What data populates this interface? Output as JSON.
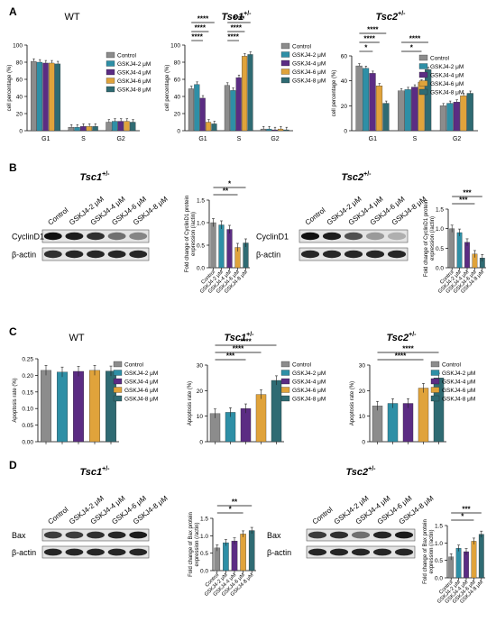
{
  "colors": [
    "#8c8c8c",
    "#2e8fa6",
    "#5b2c83",
    "#e0a33b",
    "#2f6b73"
  ],
  "series_names": [
    "Control",
    "GSKJ4-2 μM",
    "GSKJ4-4 μM",
    "GSKJ4-6 μM",
    "GSKJ4-8 μM"
  ],
  "panels": {
    "A": {
      "letter": "A"
    },
    "B": {
      "letter": "B"
    },
    "C": {
      "letter": "C"
    },
    "D": {
      "letter": "D"
    }
  },
  "blots": {
    "B_tsc1": {
      "title": "Tsc1",
      "sup": "+/-",
      "lanes": [
        "Control",
        "GSKJ4-2 μM",
        "GSKJ4-4 μM",
        "GSKJ4-6 μM",
        "GSKJ4-8 μM"
      ],
      "rows": [
        "CyclinD1",
        "β-actin"
      ]
    },
    "B_tsc2": {
      "title": "Tsc2",
      "sup": "+/-",
      "lanes": [
        "Control",
        "GSKJ4-2 μM",
        "GSKJ4-4 μM",
        "GSKJ4-6 μM",
        "GSKJ4-8 μM"
      ],
      "rows": [
        "CyclinD1",
        "β-actin"
      ]
    },
    "D_tsc1": {
      "title": "Tsc1",
      "sup": "+/-",
      "lanes": [
        "Control",
        "GSKJ4-2 μM",
        "GSKJ4-4 μM",
        "GSKJ4-6 μM",
        "GSKJ4-8 μM"
      ],
      "rows": [
        "Bax",
        "β-actin"
      ]
    },
    "D_tsc2": {
      "title": "Tsc2",
      "sup": "+/-",
      "lanes": [
        "Control",
        "GSKJ4-2 μM",
        "GSKJ4-4 μM",
        "GSKJ4-6 μM",
        "GSKJ4-8 μM"
      ],
      "rows": [
        "Bax",
        "β-actin"
      ]
    }
  },
  "chart_data": [
    {
      "id": "A_WT",
      "type": "bar",
      "title": "WT",
      "sup": "",
      "ylabel": "cell percentage (%)",
      "ylim": [
        0,
        100
      ],
      "yticks": [
        0,
        20,
        40,
        60,
        80,
        100
      ],
      "categories": [
        "G1",
        "S",
        "G2"
      ],
      "series": [
        {
          "name": "Control",
          "values": [
            81,
            4,
            10
          ]
        },
        {
          "name": "GSKJ4-2 μM",
          "values": [
            80,
            4,
            11
          ]
        },
        {
          "name": "GSKJ4-4 μM",
          "values": [
            79,
            5,
            11
          ]
        },
        {
          "name": "GSKJ4-6 μM",
          "values": [
            79,
            5,
            11
          ]
        },
        {
          "name": "GSKJ4-8 μM",
          "values": [
            78,
            5,
            10
          ]
        }
      ],
      "significance": []
    },
    {
      "id": "A_TSC1",
      "type": "bar",
      "title": "Tsc1",
      "sup": "+/-",
      "ylabel": "cell percentage (%)",
      "ylim": [
        0,
        100
      ],
      "yticks": [
        0,
        20,
        40,
        60,
        80,
        100
      ],
      "categories": [
        "G1",
        "S",
        "G2"
      ],
      "series": [
        {
          "name": "Control",
          "values": [
            49,
            53,
            2
          ]
        },
        {
          "name": "GSKJ4-2 μM",
          "values": [
            54,
            47,
            2
          ]
        },
        {
          "name": "GSKJ4-4 μM",
          "values": [
            38,
            62,
            1
          ]
        },
        {
          "name": "GSKJ4-6 μM",
          "values": [
            10,
            87,
            2
          ]
        },
        {
          "name": "GSKJ4-8 μM",
          "values": [
            8,
            89,
            1
          ]
        }
      ],
      "significance": [
        {
          "text": "****",
          "cat": 0,
          "from": 0,
          "to": 4,
          "level": 3
        },
        {
          "text": "****",
          "cat": 0,
          "from": 0,
          "to": 3,
          "level": 2
        },
        {
          "text": "****",
          "cat": 0,
          "from": 0,
          "to": 2,
          "level": 1
        },
        {
          "text": "****",
          "cat": 1,
          "from": 0,
          "to": 4,
          "level": 3
        },
        {
          "text": "****",
          "cat": 1,
          "from": 0,
          "to": 3,
          "level": 2
        },
        {
          "text": "****",
          "cat": 1,
          "from": 0,
          "to": 2,
          "level": 1
        }
      ]
    },
    {
      "id": "A_TSC2",
      "type": "bar",
      "title": "Tsc2",
      "sup": "+/-",
      "ylabel": "cell percentage (%)",
      "ylim": [
        0,
        60
      ],
      "yticks": [
        0,
        20,
        40,
        60
      ],
      "categories": [
        "G1",
        "S",
        "G2"
      ],
      "series": [
        {
          "name": "Control",
          "values": [
            52,
            32,
            20
          ]
        },
        {
          "name": "GSKJ4-2 μM",
          "values": [
            50,
            33,
            22
          ]
        },
        {
          "name": "GSKJ4-4 μM",
          "values": [
            46,
            35,
            23
          ]
        },
        {
          "name": "GSKJ4-6 μM",
          "values": [
            36,
            39,
            28
          ]
        },
        {
          "name": "GSKJ4-8 μM",
          "values": [
            22,
            49,
            30
          ]
        }
      ],
      "significance": [
        {
          "text": "****",
          "cat": 0,
          "from": 0,
          "to": 4,
          "level": 3
        },
        {
          "text": "****",
          "cat": 0,
          "from": 0,
          "to": 3,
          "level": 2
        },
        {
          "text": "*",
          "cat": 0,
          "from": 0,
          "to": 2,
          "level": 1
        },
        {
          "text": "****",
          "cat": 1,
          "from": 0,
          "to": 4,
          "level": 2
        },
        {
          "text": "*",
          "cat": 1,
          "from": 0,
          "to": 3,
          "level": 1
        }
      ]
    },
    {
      "id": "B_TSC1",
      "type": "bar",
      "title": "",
      "sup": "",
      "ylabel": "Fold change of CyclinD1 protein expression (/actin)",
      "ylim": [
        0,
        1.5
      ],
      "yticks": [
        0,
        0.5,
        1.0,
        1.5
      ],
      "categories": [
        "Control",
        "GSKJ4-2 μM",
        "GSKJ4-4 μM",
        "GSKJ4-6 μM",
        "GSKJ4-8 μM"
      ],
      "values": [
        1.0,
        0.95,
        0.85,
        0.45,
        0.55
      ],
      "significance": [
        {
          "text": "*",
          "from": 0,
          "to": 4,
          "level": 2
        },
        {
          "text": "**",
          "from": 0,
          "to": 3,
          "level": 1
        }
      ]
    },
    {
      "id": "B_TSC2",
      "type": "bar",
      "title": "",
      "sup": "",
      "ylabel": "Fold change of CyclinD1 protein expression (/actin)",
      "ylim": [
        0,
        1.5
      ],
      "yticks": [
        0,
        0.5,
        1.0,
        1.5
      ],
      "categories": [
        "Control",
        "GSKJ4-2 μM",
        "GSKJ4-4 μM",
        "GSKJ4-6 μM",
        "GSKJ4-8 μM"
      ],
      "values": [
        1.0,
        0.9,
        0.65,
        0.35,
        0.25
      ],
      "significance": [
        {
          "text": "***",
          "from": 0,
          "to": 4,
          "level": 2
        },
        {
          "text": "***",
          "from": 0,
          "to": 3,
          "level": 1
        }
      ]
    },
    {
      "id": "C_WT",
      "type": "bar",
      "title": "WT",
      "sup": "",
      "ylabel": "Apoptosis rate (%)",
      "ylim": [
        0,
        0.25
      ],
      "yticks": [
        0,
        0.05,
        0.1,
        0.15,
        0.2,
        0.25
      ],
      "categories": [
        "",
        "",
        "",
        "",
        ""
      ],
      "values": [
        0.215,
        0.21,
        0.212,
        0.215,
        0.213
      ],
      "significance": []
    },
    {
      "id": "C_TSC1",
      "type": "bar",
      "title": "Tsc1",
      "sup": "+/-",
      "ylabel": "Apoptosis rate (%)",
      "ylim": [
        0,
        30
      ],
      "yticks": [
        0,
        10,
        20,
        30
      ],
      "categories": [
        "",
        "",
        "",
        "",
        ""
      ],
      "values": [
        11,
        11.5,
        13,
        18.5,
        24
      ],
      "significance": [
        {
          "text": "****",
          "from": 0,
          "to": 4,
          "level": 3
        },
        {
          "text": "****",
          "from": 0,
          "to": 3,
          "level": 2
        },
        {
          "text": "***",
          "from": 0,
          "to": 2,
          "level": 1
        }
      ]
    },
    {
      "id": "C_TSC2",
      "type": "bar",
      "title": "Tsc2",
      "sup": "+/-",
      "ylabel": "Apoptosis rate (%)",
      "ylim": [
        0,
        30
      ],
      "yticks": [
        0,
        10,
        20,
        30
      ],
      "categories": [
        "",
        "",
        "",
        "",
        ""
      ],
      "values": [
        14,
        15,
        15,
        21,
        25
      ],
      "significance": [
        {
          "text": "****",
          "from": 0,
          "to": 4,
          "level": 2
        },
        {
          "text": "****",
          "from": 0,
          "to": 3,
          "level": 1
        }
      ]
    },
    {
      "id": "D_TSC1",
      "type": "bar",
      "title": "",
      "sup": "",
      "ylabel": "Fold change of Bax protein expression (/actin)",
      "ylim": [
        0,
        1.5
      ],
      "yticks": [
        0,
        0.5,
        1.0,
        1.5
      ],
      "categories": [
        "Control",
        "GSKJ4-2 μM",
        "GSKJ4-4 μM",
        "GSKJ4-6 μM",
        "GSKJ4-8 μM"
      ],
      "values": [
        0.65,
        0.8,
        0.85,
        1.05,
        1.15
      ],
      "significance": [
        {
          "text": "**",
          "from": 0,
          "to": 4,
          "level": 2
        },
        {
          "text": "*",
          "from": 0,
          "to": 3,
          "level": 1
        }
      ]
    },
    {
      "id": "D_TSC2",
      "type": "bar",
      "title": "",
      "sup": "",
      "ylabel": "Fold change of Bax protein expression (/actin)",
      "ylim": [
        0,
        1.5
      ],
      "yticks": [
        0,
        0.5,
        1.0,
        1.5
      ],
      "categories": [
        "Control",
        "GSKJ4-2 μM",
        "GSKJ4-4 μM",
        "GSKJ4-6 μM",
        "GSKJ4-8 μM"
      ],
      "values": [
        0.6,
        0.85,
        0.75,
        1.05,
        1.25
      ],
      "significance": [
        {
          "text": "***",
          "from": 0,
          "to": 4,
          "level": 2
        },
        {
          "text": "*",
          "from": 0,
          "to": 3,
          "level": 1
        }
      ]
    }
  ]
}
